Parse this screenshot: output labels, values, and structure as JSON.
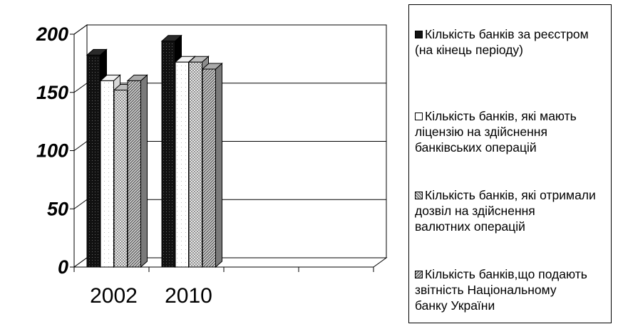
{
  "chart_data": {
    "type": "bar",
    "categories": [
      "2002",
      "2010"
    ],
    "extra_empty_slots": 2,
    "series": [
      {
        "name": "Кількість банків за реєстром (на кінець періоду)",
        "values": [
          182,
          194
        ],
        "pattern": "dark"
      },
      {
        "name": "Кількість банків, які мають ліцензію на здійснення банківських операцій",
        "values": [
          160,
          176
        ],
        "pattern": "white"
      },
      {
        "name": "Кількість банків, які отримали дозвіл на здійснення валютних операцій",
        "values": [
          152,
          176
        ],
        "pattern": "dots"
      },
      {
        "name": "Кількість банків,що подають звітність Національному банку України",
        "values": [
          160,
          170
        ],
        "pattern": "hatch"
      }
    ],
    "yticks": [
      "0",
      "50",
      "100",
      "150",
      "200"
    ],
    "ylim": [
      0,
      200
    ],
    "grid": true,
    "three_d": true,
    "legend_position": "right"
  },
  "legend": {
    "entries": [
      "Кількість банків за реєстром\n(на кінець періоду)",
      "Кількість банків, які мають\nліцензію на здійснення\nбанківських операцій",
      "Кількість банків, які отримали\nдозвіл на здійснення\nвалютних операцій",
      "Кількість банків,що подають\nзвітність Національному\nбанку України"
    ]
  }
}
